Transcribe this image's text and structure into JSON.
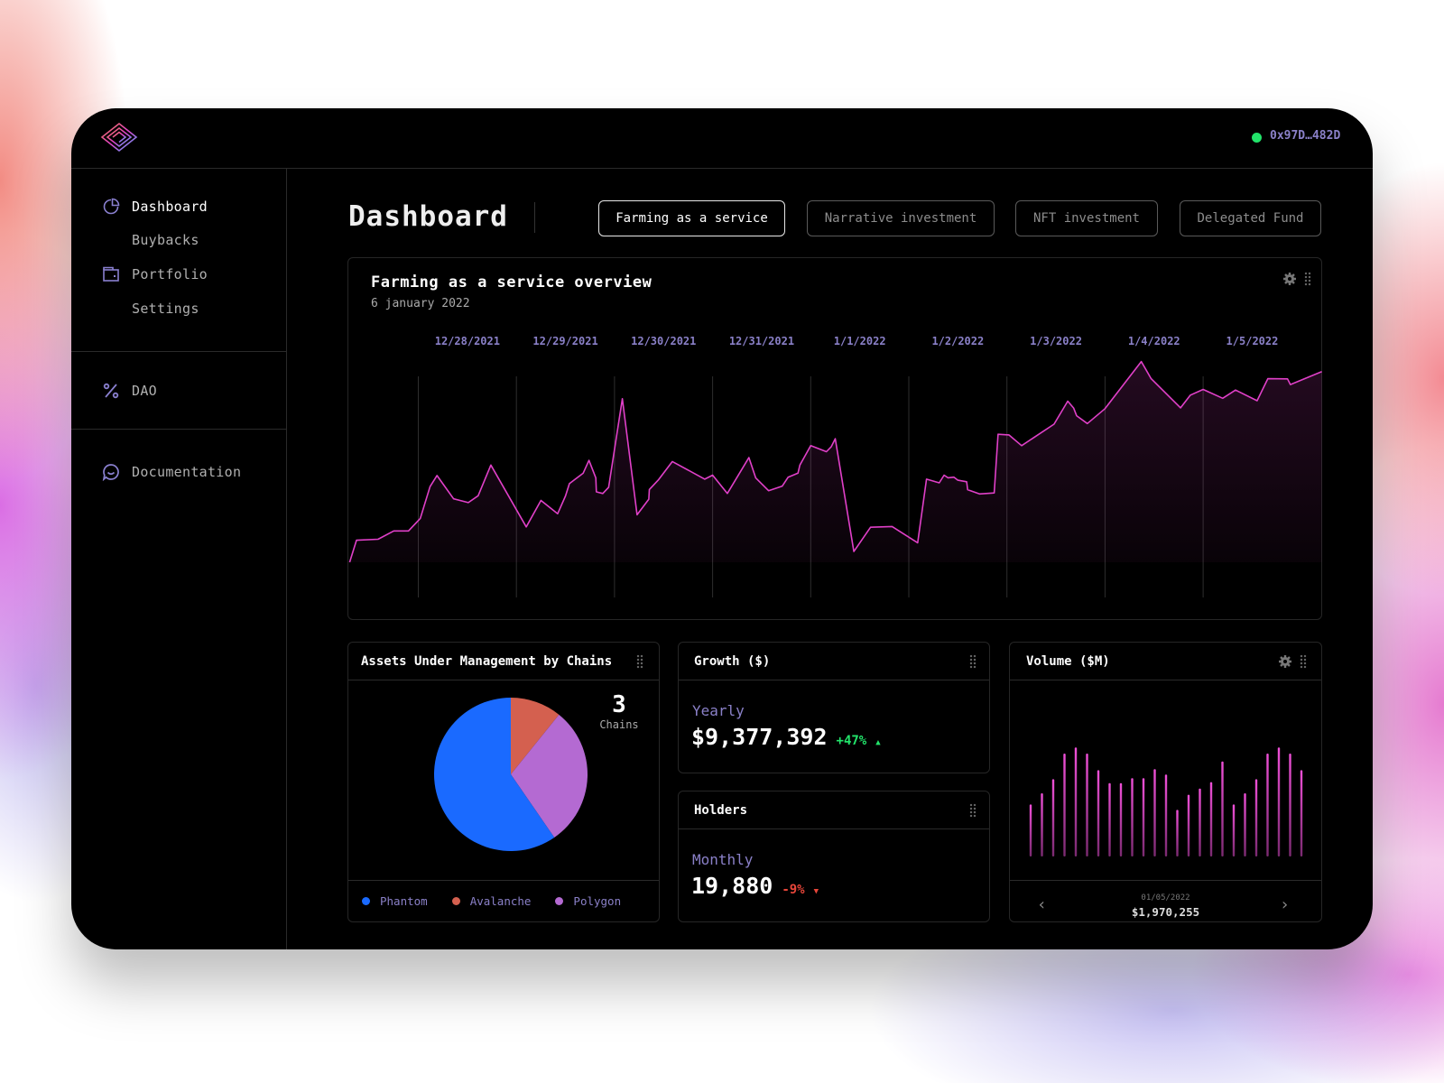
{
  "header": {
    "wallet_address": "0x97D…482D",
    "wallet_status_color": "#22e36a"
  },
  "sidebar": {
    "items": [
      {
        "label": "Dashboard",
        "icon": "pie-chart-icon"
      },
      {
        "label": "Buybacks"
      },
      {
        "label": "Portfolio",
        "icon": "wallet-icon"
      },
      {
        "label": "Settings"
      },
      {
        "label": "DAO",
        "icon": "percent-icon"
      },
      {
        "label": "Documentation",
        "icon": "chat-bubble-icon"
      }
    ]
  },
  "main": {
    "title": "Dashboard",
    "tabs": [
      {
        "label": "Farming as a service",
        "active": true
      },
      {
        "label": "Narrative investment"
      },
      {
        "label": "NFT investment"
      },
      {
        "label": "Delegated Fund"
      }
    ]
  },
  "overview": {
    "title": "Farming as a service overview",
    "date": "6 january 2022"
  },
  "aum": {
    "title": "Assets Under Management by Chains",
    "count": "3",
    "count_label": "Chains"
  },
  "growth": {
    "title": "Growth ($)",
    "period": "Yearly",
    "value": "$9,377,392",
    "change": "+47%"
  },
  "holders": {
    "title": "Holders",
    "period": "Monthly",
    "value": "19,880",
    "change": "-9%"
  },
  "volume": {
    "title": "Volume ($M)",
    "date": "01/05/2022",
    "value": "$1,970,255"
  },
  "colors": {
    "accent": "#e040c8",
    "up": "#22e36a",
    "down": "#e8463a",
    "label": "#8a80c8"
  },
  "chart_data": [
    {
      "type": "area",
      "title": "Farming as a service overview",
      "x_tick_labels": [
        "12/28/2021",
        "12/29/2021",
        "12/30/2021",
        "12/31/2021",
        "1/1/2022",
        "1/2/2022",
        "1/3/2022",
        "1/4/2022",
        "1/5/2022"
      ],
      "xlim": [
        0.3,
        10.22
      ],
      "ylim": [
        0,
        100
      ],
      "grid": "vertical",
      "points": [
        [
          0.3,
          0
        ],
        [
          0.37,
          10.9
        ],
        [
          0.59,
          11.4
        ],
        [
          0.75,
          15.5
        ],
        [
          0.9,
          15.5
        ],
        [
          1.02,
          21.7
        ],
        [
          1.12,
          37.4
        ],
        [
          1.19,
          42.9
        ],
        [
          1.36,
          31.4
        ],
        [
          1.51,
          29.5
        ],
        [
          1.61,
          32.9
        ],
        [
          1.74,
          48.1
        ],
        [
          2.1,
          17.5
        ],
        [
          2.25,
          30.6
        ],
        [
          2.42,
          24.0
        ],
        [
          2.5,
          32.8
        ],
        [
          2.54,
          38.9
        ],
        [
          2.68,
          44.0
        ],
        [
          2.74,
          50.4
        ],
        [
          2.81,
          41.7
        ],
        [
          2.815,
          34.8
        ],
        [
          2.88,
          34.0
        ],
        [
          2.94,
          37.1
        ],
        [
          3.08,
          80.9
        ],
        [
          3.23,
          23.5
        ],
        [
          3.35,
          31.2
        ],
        [
          3.355,
          36.0
        ],
        [
          3.45,
          40.9
        ],
        [
          3.59,
          49.8
        ],
        [
          3.92,
          41.1
        ],
        [
          4.0,
          43.1
        ],
        [
          4.15,
          34.0
        ],
        [
          4.37,
          51.8
        ],
        [
          4.44,
          41.7
        ],
        [
          4.57,
          35.4
        ],
        [
          4.71,
          37.7
        ],
        [
          4.77,
          42.1
        ],
        [
          4.87,
          44.1
        ],
        [
          4.89,
          48.1
        ],
        [
          5.0,
          57.7
        ],
        [
          5.16,
          54.7
        ],
        [
          5.21,
          57.2
        ],
        [
          5.25,
          61.1
        ],
        [
          5.44,
          5.3
        ],
        [
          5.61,
          17.3
        ],
        [
          5.83,
          17.7
        ],
        [
          6.09,
          9.6
        ],
        [
          6.18,
          41.1
        ],
        [
          6.31,
          39.3
        ],
        [
          6.36,
          43.1
        ],
        [
          6.4,
          41.8
        ],
        [
          6.46,
          42.1
        ],
        [
          6.5,
          40.6
        ],
        [
          6.59,
          39.8
        ],
        [
          6.6,
          35.9
        ],
        [
          6.72,
          33.8
        ],
        [
          6.87,
          34.3
        ],
        [
          6.91,
          63.3
        ],
        [
          7.02,
          63.0
        ],
        [
          7.15,
          57.7
        ],
        [
          7.48,
          68.3
        ],
        [
          7.62,
          79.7
        ],
        [
          7.68,
          76.3
        ],
        [
          7.71,
          72.5
        ],
        [
          7.82,
          68.6
        ],
        [
          8.0,
          76.0
        ],
        [
          8.37,
          99.3
        ],
        [
          8.47,
          90.8
        ],
        [
          8.77,
          76.4
        ],
        [
          8.87,
          82.7
        ],
        [
          9.0,
          85.5
        ],
        [
          9.2,
          81.1
        ],
        [
          9.33,
          85.2
        ],
        [
          9.55,
          79.9
        ],
        [
          9.66,
          90.8
        ],
        [
          9.86,
          90.7
        ],
        [
          9.89,
          87.9
        ],
        [
          10.21,
          94.3
        ]
      ]
    },
    {
      "type": "pie",
      "title": "Assets Under Management by Chains",
      "slices": [
        {
          "label": "Avalanche",
          "value": 10.8,
          "color": "#d4604f"
        },
        {
          "label": "Polygon",
          "value": 29.6,
          "color": "#b46ad2"
        },
        {
          "label": "Phantom",
          "value": 59.6,
          "color": "#1a6aff"
        }
      ],
      "legend": [
        "Phantom",
        "Avalanche",
        "Polygon"
      ],
      "legend_placement": "bottom"
    },
    {
      "type": "bar",
      "title": "Volume ($M)",
      "values": [
        1.44,
        1.75,
        2.14,
        2.85,
        3.02,
        2.85,
        2.39,
        2.03,
        2.03,
        2.17,
        2.17,
        2.42,
        2.27,
        1.29,
        1.71,
        1.88,
        2.06,
        2.63,
        1.44,
        1.75,
        2.14,
        2.85,
        3.02,
        2.85,
        2.39
      ],
      "ylim": [
        0,
        3.2
      ]
    }
  ]
}
